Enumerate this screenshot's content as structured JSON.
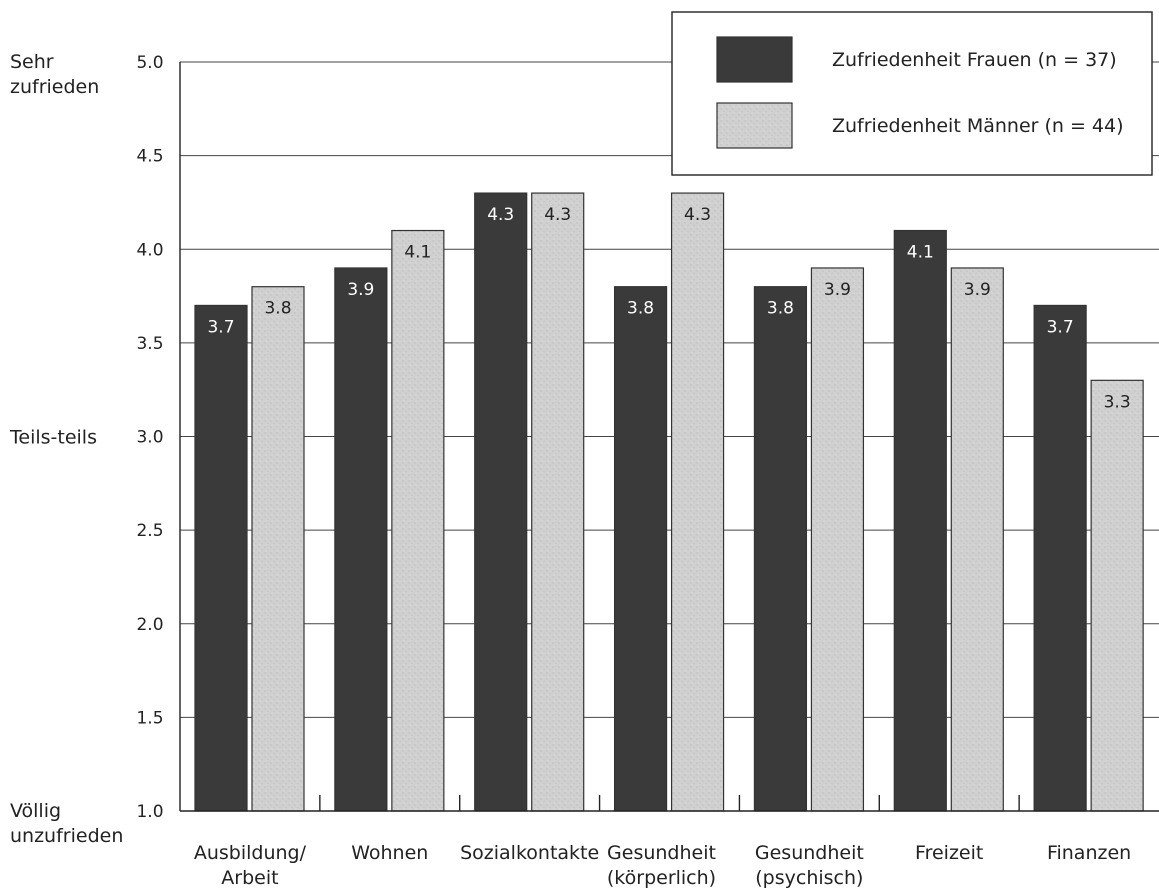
{
  "chart_data": {
    "type": "bar",
    "categories": [
      [
        "Ausbildung/",
        "Arbeit"
      ],
      [
        "Wohnen"
      ],
      [
        "Sozialkontakte"
      ],
      [
        "Gesundheit",
        "(körperlich)"
      ],
      [
        "Gesundheit",
        "(psychisch)"
      ],
      [
        "Freizeit"
      ],
      [
        "Finanzen"
      ]
    ],
    "series": [
      {
        "name": "Zufriedenheit Frauen (n = 37)",
        "color": "#3a3a3a",
        "label_color": "#ffffff",
        "values": [
          3.7,
          3.9,
          4.3,
          3.8,
          3.8,
          4.1,
          3.7
        ],
        "labels": [
          "3.7",
          "3.9",
          "4.3",
          "3.8",
          "3.8",
          "4.1",
          "3.7"
        ]
      },
      {
        "name": "Zufriedenheit Männer (n = 44)",
        "color": "#cfcfcf",
        "label_color": "#222222",
        "values": [
          3.8,
          4.1,
          4.3,
          4.3,
          3.9,
          3.9,
          3.3
        ],
        "labels": [
          "3.8",
          "4.1",
          "4.3",
          "4.3",
          "3.9",
          "3.9",
          "3.3"
        ]
      }
    ],
    "ylim": [
      1.0,
      5.0
    ],
    "yticks": [
      1.0,
      1.5,
      2.0,
      2.5,
      3.0,
      3.5,
      4.0,
      4.5,
      5.0
    ],
    "ytick_labels": [
      "1.0",
      "1.5",
      "2.0",
      "2.5",
      "3.0",
      "3.5",
      "4.0",
      "4.5",
      "5.0"
    ],
    "y_text_labels": [
      {
        "value": 5.0,
        "lines": [
          "Sehr",
          "zufrieden"
        ]
      },
      {
        "value": 3.0,
        "lines": [
          "Teils-teils"
        ]
      },
      {
        "value": 1.0,
        "lines": [
          "Völlig",
          "unzufrieden"
        ]
      }
    ],
    "grid": true,
    "legend_position": "top-right"
  }
}
